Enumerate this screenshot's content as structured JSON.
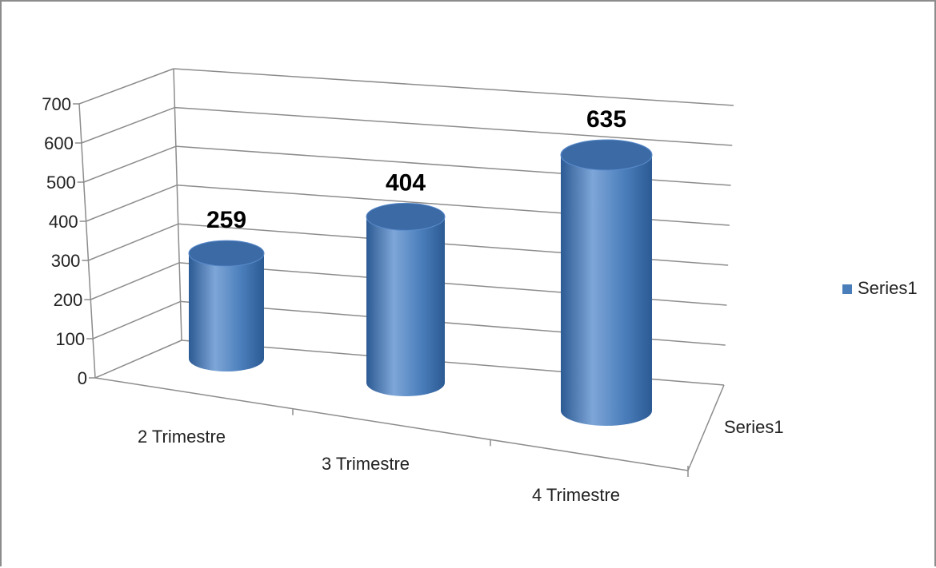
{
  "chart_data": {
    "type": "bar",
    "style": "3d-cylinder",
    "categories": [
      "2 Trimestre",
      "3 Trimestre",
      "4 Trimestre"
    ],
    "series": [
      {
        "name": "Series1",
        "values": [
          259,
          404,
          635
        ]
      }
    ],
    "data_labels": [
      "259",
      "404",
      "635"
    ],
    "y_ticks": [
      "0",
      "100",
      "200",
      "300",
      "400",
      "500",
      "600",
      "700"
    ],
    "ylim": [
      0,
      700
    ],
    "depth_axis_label": "Series1",
    "title": "",
    "xlabel": "",
    "ylabel": "",
    "grid": true,
    "legend": {
      "placement": "right",
      "entries": [
        "Series1"
      ]
    },
    "colors": {
      "bar": "#4a7ebb",
      "bar_dark": "#2c5a93",
      "bar_light": "#7ea6d8",
      "top": "#3b6aa5",
      "grid": "#8c8c8c"
    }
  }
}
